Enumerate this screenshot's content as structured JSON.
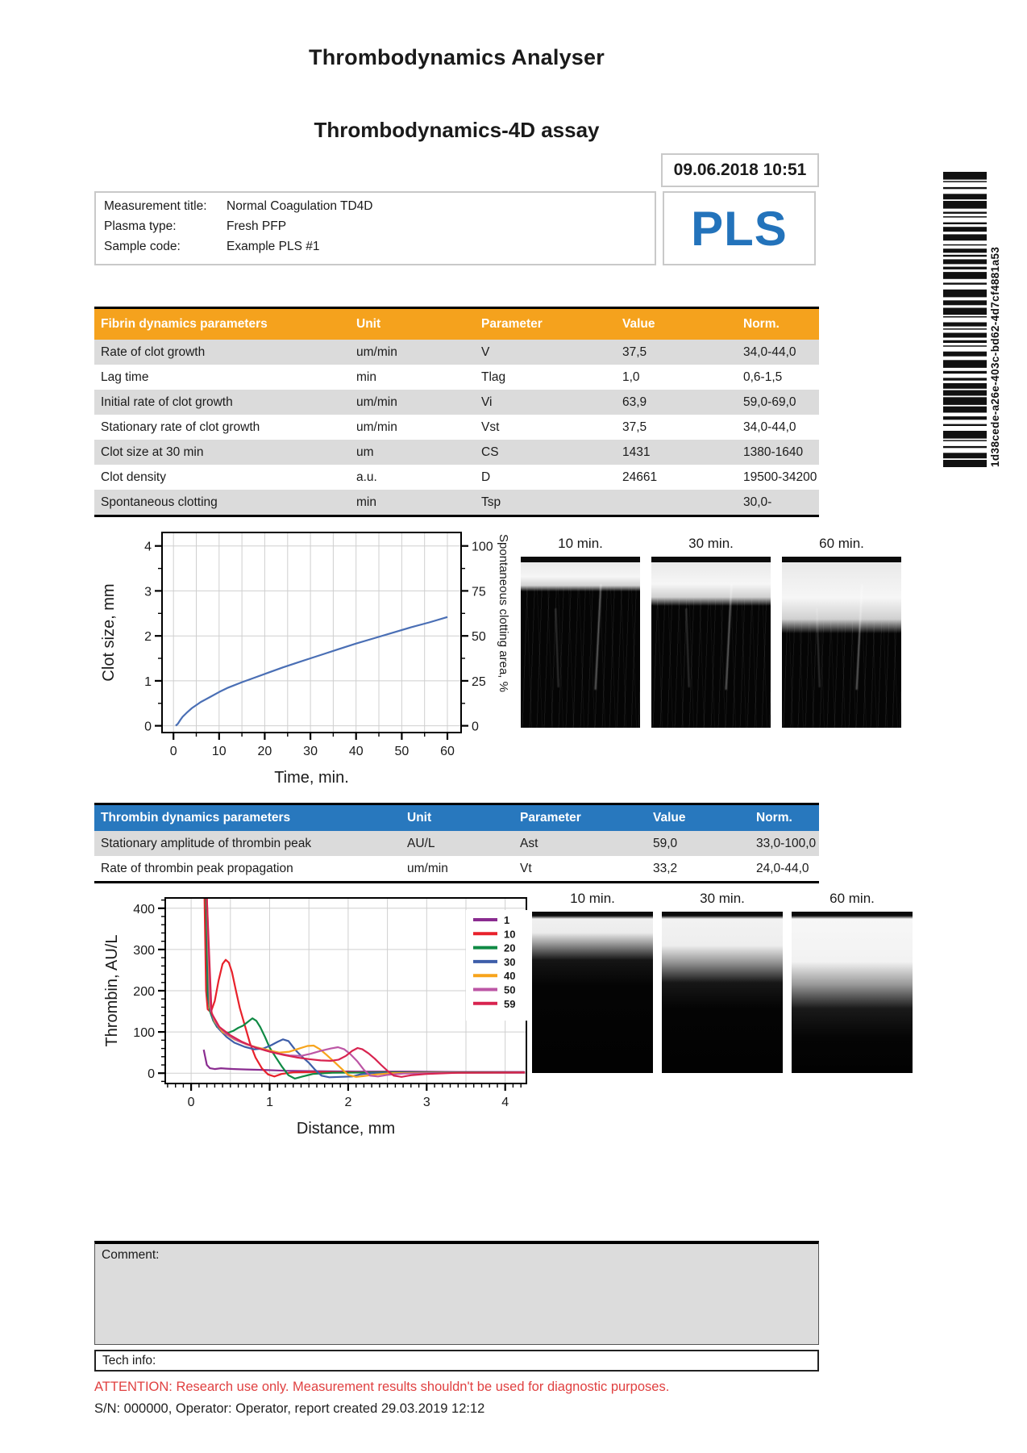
{
  "page": {
    "app_title": "Thrombodynamics Analyser",
    "report_title": "Thrombodynamics-4D assay",
    "datetime": "09.06.2018 10:51",
    "logo": "PLS",
    "logo_color": "#2373BB",
    "barcode_text": "1d38cede-a26e-403c-bd62-4d7cf4881a53"
  },
  "measurement": {
    "rows": [
      {
        "label": "Measurement title:",
        "value": "Normal Coagulation TD4D"
      },
      {
        "label": "Plasma type:",
        "value": "Fresh PFP"
      },
      {
        "label": "Sample code:",
        "value": "Example PLS #1"
      }
    ]
  },
  "fibrin_table": {
    "header_bg": "#F5A21D",
    "columns": [
      "Fibrin dynamics parameters",
      "Unit",
      "Parameter",
      "Value",
      "Norm."
    ],
    "rows": [
      [
        "Rate of clot growth",
        "um/min",
        "V",
        "37,5",
        "34,0-44,0"
      ],
      [
        "Lag time",
        "min",
        "Tlag",
        "1,0",
        "0,6-1,5"
      ],
      [
        "Initial rate of clot growth",
        "um/min",
        "Vi",
        "63,9",
        "59,0-69,0"
      ],
      [
        "Stationary rate of clot growth",
        "um/min",
        "Vst",
        "37,5",
        "34,0-44,0"
      ],
      [
        "Clot size at 30 min",
        "um",
        "CS",
        "1431",
        "1380-1640"
      ],
      [
        "Clot density",
        "a.u.",
        "D",
        "24661",
        "19500-34200"
      ],
      [
        "Spontaneous clotting",
        "min",
        "Tsp",
        "",
        "30,0-"
      ]
    ]
  },
  "thrombin_table": {
    "header_bg": "#2878BE",
    "columns": [
      "Thrombin dynamics parameters",
      "Unit",
      "Parameter",
      "Value",
      "Norm."
    ],
    "rows": [
      [
        "Stationary amplitude of thrombin peak",
        "AU/L",
        "Ast",
        "59,0",
        "33,0-100,0"
      ],
      [
        "Rate of thrombin peak propagation",
        "um/min",
        "Vt",
        "33,2",
        "24,0-44,0"
      ]
    ]
  },
  "photos": {
    "fibrin_labels": [
      "10 min.",
      "30 min.",
      "60 min."
    ],
    "thrombin_labels": [
      "10 min.",
      "30 min.",
      "60 min."
    ]
  },
  "footer": {
    "comment_label": "Comment:",
    "tech_label": "Tech info:",
    "attention": "ATTENTION: Research use only. Measurement results shouldn't be used for diagnostic purposes.",
    "attention_color": "#E04040",
    "serial_line": "S/N: 000000, Operator: Operator, report created 29.03.2019 12:12"
  },
  "chart_data": [
    {
      "id": "clot-growth-chart",
      "type": "line",
      "xlabel": "Time, min.",
      "ylabel": "Clot size, mm",
      "y2label": "Spontaneous clotting area, %",
      "xlim": [
        -2.5,
        63
      ],
      "ylim": [
        -0.15,
        4.3
      ],
      "xticks": [
        0,
        10,
        20,
        30,
        40,
        50,
        60
      ],
      "xminor": 5,
      "xgrid": 5,
      "yticks": [
        0,
        1,
        2,
        3,
        4
      ],
      "yminor": 0.5,
      "ygrid": 1,
      "y2": {
        "ticks": [
          0,
          25,
          50,
          75,
          100
        ],
        "minor": 12.5,
        "scale": 0.04
      },
      "grid": true,
      "legend": false,
      "series": [
        {
          "name": "Clot size",
          "color": "#4A6FB5",
          "points": [
            [
              0.5,
              0
            ],
            [
              1,
              0.05
            ],
            [
              1.5,
              0.13
            ],
            [
              2,
              0.2
            ],
            [
              3,
              0.3
            ],
            [
              4,
              0.39
            ],
            [
              5,
              0.46
            ],
            [
              6,
              0.53
            ],
            [
              8,
              0.64
            ],
            [
              10,
              0.75
            ],
            [
              12,
              0.85
            ],
            [
              15,
              0.97
            ],
            [
              18,
              1.08
            ],
            [
              21,
              1.19
            ],
            [
              24,
              1.3
            ],
            [
              27,
              1.4
            ],
            [
              30,
              1.5
            ],
            [
              33,
              1.6
            ],
            [
              36,
              1.7
            ],
            [
              40,
              1.83
            ],
            [
              44,
              1.95
            ],
            [
              48,
              2.07
            ],
            [
              52,
              2.19
            ],
            [
              56,
              2.3
            ],
            [
              60,
              2.42
            ]
          ]
        }
      ]
    },
    {
      "id": "thrombin-chart",
      "type": "line",
      "xlabel": "Distance, mm",
      "ylabel": "Thrombin, AU/L",
      "xlim": [
        -0.33,
        4.27
      ],
      "ylim": [
        -25,
        425
      ],
      "xticks": [
        0,
        1,
        2,
        3,
        4
      ],
      "xminor": 0.1,
      "xgrid": 0.5,
      "yticks": [
        0,
        100,
        200,
        300,
        400
      ],
      "yminor": 20,
      "ygrid": 100,
      "grid": true,
      "legend": true,
      "series": [
        {
          "name": "1",
          "color": "#8A2C90",
          "points": [
            [
              0.16,
              57
            ],
            [
              0.18,
              38
            ],
            [
              0.2,
              20
            ],
            [
              0.24,
              12
            ],
            [
              0.3,
              10
            ],
            [
              0.38,
              12
            ],
            [
              0.45,
              11
            ],
            [
              0.55,
              10
            ],
            [
              0.7,
              9
            ],
            [
              0.9,
              8
            ],
            [
              1.2,
              6
            ],
            [
              1.6,
              5
            ],
            [
              2.1,
              4
            ],
            [
              2.7,
              4
            ],
            [
              3.4,
              3
            ],
            [
              4.25,
              3
            ]
          ]
        },
        {
          "name": "10",
          "color": "#E8212B",
          "points": [
            [
              0.17,
              425
            ],
            [
              0.19,
              200
            ],
            [
              0.21,
              155
            ],
            [
              0.25,
              148
            ],
            [
              0.3,
              175
            ],
            [
              0.35,
              225
            ],
            [
              0.4,
              265
            ],
            [
              0.44,
              275
            ],
            [
              0.48,
              268
            ],
            [
              0.52,
              245
            ],
            [
              0.57,
              200
            ],
            [
              0.62,
              158
            ],
            [
              0.68,
              118
            ],
            [
              0.75,
              72
            ],
            [
              0.82,
              38
            ],
            [
              0.9,
              12
            ],
            [
              0.98,
              -3
            ],
            [
              1.06,
              -8
            ],
            [
              1.15,
              -2
            ],
            [
              1.3,
              2
            ],
            [
              1.6,
              3
            ],
            [
              2.2,
              2
            ],
            [
              3.0,
              2
            ],
            [
              4.25,
              2
            ]
          ]
        },
        {
          "name": "20",
          "color": "#0F8A44",
          "points": [
            [
              0.19,
              425
            ],
            [
              0.21,
              190
            ],
            [
              0.24,
              150
            ],
            [
              0.28,
              128
            ],
            [
              0.33,
              112
            ],
            [
              0.4,
              102
            ],
            [
              0.47,
              98
            ],
            [
              0.54,
              103
            ],
            [
              0.6,
              110
            ],
            [
              0.66,
              115
            ],
            [
              0.72,
              124
            ],
            [
              0.78,
              133
            ],
            [
              0.83,
              127
            ],
            [
              0.88,
              112
            ],
            [
              0.94,
              88
            ],
            [
              1.0,
              62
            ],
            [
              1.08,
              38
            ],
            [
              1.16,
              15
            ],
            [
              1.24,
              -5
            ],
            [
              1.32,
              -13
            ],
            [
              1.42,
              -8
            ],
            [
              1.55,
              -2
            ],
            [
              1.8,
              1
            ],
            [
              2.5,
              2
            ],
            [
              4.25,
              2
            ]
          ]
        },
        {
          "name": "30",
          "color": "#3E5EA9",
          "points": [
            [
              0.2,
              425
            ],
            [
              0.23,
              170
            ],
            [
              0.28,
              130
            ],
            [
              0.35,
              108
            ],
            [
              0.45,
              88
            ],
            [
              0.55,
              74
            ],
            [
              0.68,
              64
            ],
            [
              0.8,
              58
            ],
            [
              0.92,
              60
            ],
            [
              1.02,
              68
            ],
            [
              1.1,
              76
            ],
            [
              1.17,
              82
            ],
            [
              1.24,
              78
            ],
            [
              1.32,
              58
            ],
            [
              1.4,
              42
            ],
            [
              1.5,
              25
            ],
            [
              1.58,
              8
            ],
            [
              1.66,
              -6
            ],
            [
              1.76,
              -10
            ],
            [
              1.9,
              -9
            ],
            [
              2.05,
              -8
            ],
            [
              2.15,
              -3
            ],
            [
              2.3,
              0
            ],
            [
              3.0,
              1
            ],
            [
              4.25,
              1
            ]
          ]
        },
        {
          "name": "40",
          "color": "#F7A41C",
          "points": [
            [
              0.2,
              425
            ],
            [
              0.24,
              160
            ],
            [
              0.3,
              125
            ],
            [
              0.4,
              100
            ],
            [
              0.55,
              82
            ],
            [
              0.7,
              70
            ],
            [
              0.85,
              62
            ],
            [
              1.0,
              55
            ],
            [
              1.12,
              50
            ],
            [
              1.25,
              52
            ],
            [
              1.38,
              60
            ],
            [
              1.48,
              66
            ],
            [
              1.56,
              67
            ],
            [
              1.64,
              58
            ],
            [
              1.72,
              45
            ],
            [
              1.82,
              28
            ],
            [
              1.92,
              10
            ],
            [
              2.0,
              -4
            ],
            [
              2.1,
              -9
            ],
            [
              2.2,
              -7
            ],
            [
              2.35,
              -3
            ],
            [
              2.55,
              0
            ],
            [
              3.2,
              1
            ],
            [
              4.25,
              1
            ]
          ]
        },
        {
          "name": "50",
          "color": "#BC56A5",
          "points": [
            [
              0.2,
              425
            ],
            [
              0.25,
              150
            ],
            [
              0.33,
              118
            ],
            [
              0.45,
              95
            ],
            [
              0.6,
              78
            ],
            [
              0.78,
              65
            ],
            [
              0.95,
              55
            ],
            [
              1.1,
              48
            ],
            [
              1.25,
              43
            ],
            [
              1.4,
              42
            ],
            [
              1.52,
              47
            ],
            [
              1.65,
              54
            ],
            [
              1.78,
              60
            ],
            [
              1.87,
              63
            ],
            [
              1.95,
              58
            ],
            [
              2.03,
              46
            ],
            [
              2.12,
              28
            ],
            [
              2.2,
              8
            ],
            [
              2.28,
              -6
            ],
            [
              2.38,
              -8
            ],
            [
              2.5,
              -4
            ],
            [
              2.7,
              -1
            ],
            [
              3.3,
              1
            ],
            [
              4.25,
              1
            ]
          ]
        },
        {
          "name": "59",
          "color": "#D8234F",
          "points": [
            [
              0.2,
              425
            ],
            [
              0.26,
              145
            ],
            [
              0.36,
              112
            ],
            [
              0.5,
              92
            ],
            [
              0.65,
              76
            ],
            [
              0.82,
              62
            ],
            [
              1.0,
              52
            ],
            [
              1.18,
              44
            ],
            [
              1.35,
              38
            ],
            [
              1.5,
              34
            ],
            [
              1.65,
              31
            ],
            [
              1.78,
              30
            ],
            [
              1.88,
              33
            ],
            [
              1.97,
              42
            ],
            [
              2.05,
              54
            ],
            [
              2.12,
              61
            ],
            [
              2.18,
              58
            ],
            [
              2.26,
              48
            ],
            [
              2.34,
              35
            ],
            [
              2.42,
              20
            ],
            [
              2.5,
              6
            ],
            [
              2.58,
              -6
            ],
            [
              2.68,
              -9
            ],
            [
              2.8,
              -5
            ],
            [
              3.0,
              -2
            ],
            [
              3.4,
              1
            ],
            [
              4.25,
              2
            ]
          ]
        }
      ]
    }
  ]
}
